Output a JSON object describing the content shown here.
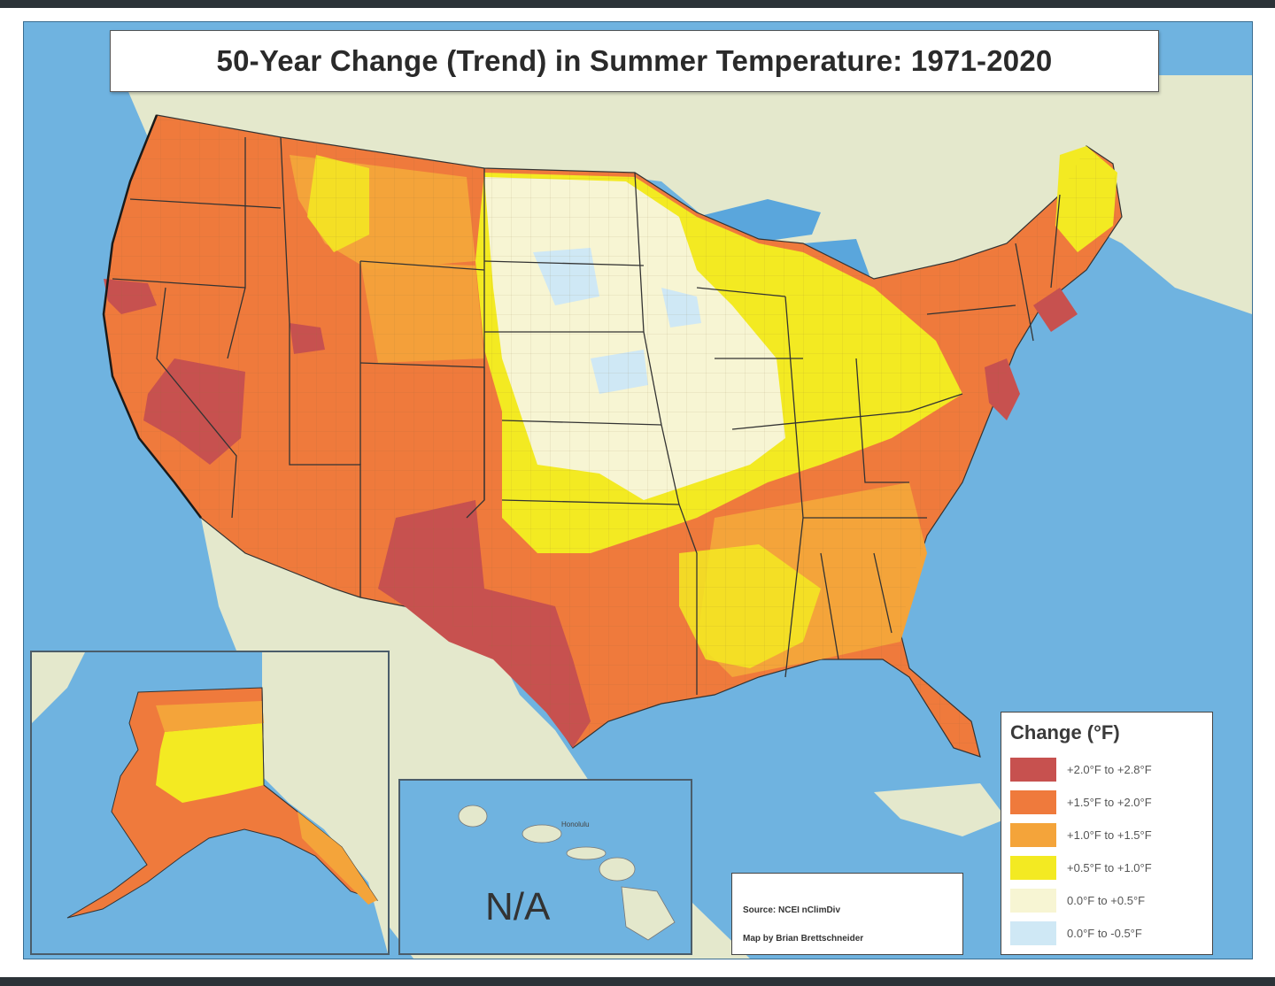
{
  "title": "50-Year Change (Trend) in Summer Temperature: 1971-2020",
  "legend": {
    "title": "Change (°F)",
    "items": [
      {
        "label": "+2.0°F to +2.8°F",
        "color": "#c7514f"
      },
      {
        "label": "+1.5°F to +2.0°F",
        "color": "#ef7a3c"
      },
      {
        "label": "+1.0°F to +1.5°F",
        "color": "#f4a43a"
      },
      {
        "label": "+0.5°F to +1.0°F",
        "color": "#f3ea22"
      },
      {
        "label": "0.0°F to +0.5°F",
        "color": "#f7f5d3"
      },
      {
        "label": "0.0°F to -0.5°F",
        "color": "#cfe8f5"
      }
    ]
  },
  "credits": {
    "source": "Source: NCEI nClimDiv",
    "author": "Map by Brian Brettschneider"
  },
  "hawaii_inset": {
    "status": "N/A",
    "place_label": "Honolulu"
  },
  "colors": {
    "ocean": "#6fb3e0",
    "land_neighbor": "#e2e6c8",
    "great_lakes": "#5aa6dc"
  }
}
